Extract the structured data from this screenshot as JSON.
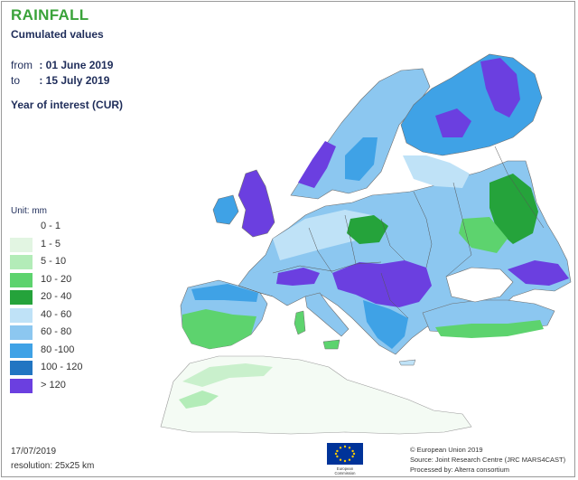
{
  "header": {
    "title": "RAINFALL",
    "subtitle": "Cumulated values",
    "from_label": "from",
    "from_value": ": 01 June 2019",
    "to_label": "to",
    "to_value": ": 15 July 2019",
    "interest": "Year of interest (CUR)"
  },
  "legend": {
    "unit": "Unit: mm",
    "classes": [
      {
        "label": "0 - 1",
        "color": "#ffffff"
      },
      {
        "label": "1 - 5",
        "color": "#e2f5e2"
      },
      {
        "label": "5 - 10",
        "color": "#b3ecb8"
      },
      {
        "label": "10 - 20",
        "color": "#5dd36e"
      },
      {
        "label": "20 - 40",
        "color": "#25a33b"
      },
      {
        "label": "40 - 60",
        "color": "#bfe2f7"
      },
      {
        "label": "60 - 80",
        "color": "#8cc7f0"
      },
      {
        "label": "80 -100",
        "color": "#3fa2e6"
      },
      {
        "label": "100 - 120",
        "color": "#2175c2"
      },
      {
        "label": "> 120",
        "color": "#6b3fe0"
      }
    ]
  },
  "footer": {
    "date": "17/07/2019",
    "resolution": "resolution:  25x25 km",
    "credit_1": "© European Union 2019",
    "credit_2": "Source: Joint Research Centre (JRC MARS4CAST)",
    "credit_3": "Processed by: Alterra consortium"
  },
  "logo": {
    "name": "european-commission-logo",
    "text_line1": "European",
    "text_line2": "Commission",
    "flag_color": "#003399",
    "star_color": "#ffcc00"
  }
}
